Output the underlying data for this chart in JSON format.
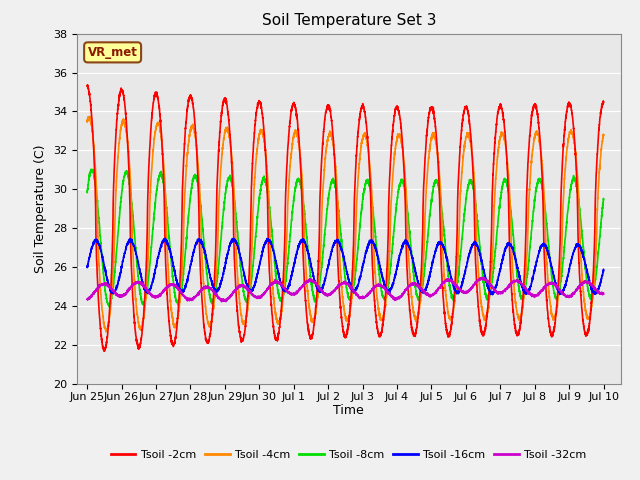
{
  "title": "Soil Temperature Set 3",
  "xlabel": "Time",
  "ylabel": "Soil Temperature (C)",
  "ylim": [
    20,
    38
  ],
  "background_color": "#e8e8e8",
  "grid_color": "#ffffff",
  "annotation_text": "VR_met",
  "series": {
    "Tsoil -2cm": {
      "color": "#ff0000",
      "lw": 1.2
    },
    "Tsoil -4cm": {
      "color": "#ff8800",
      "lw": 1.2
    },
    "Tsoil -8cm": {
      "color": "#00dd00",
      "lw": 1.2
    },
    "Tsoil -16cm": {
      "color": "#0000ff",
      "lw": 1.2
    },
    "Tsoil -32cm": {
      "color": "#cc00cc",
      "lw": 1.2
    }
  },
  "tick_labels": [
    "Jun 25",
    "Jun 26",
    "Jun 27",
    "Jun 28",
    "Jun 29",
    "Jun 30",
    "Jul 1",
    "Jul 2",
    "Jul 3",
    "Jul 4",
    "Jul 5",
    "Jul 6",
    "Jul 7",
    "Jul 8",
    "Jul 9",
    "Jul 10"
  ],
  "tick_positions": [
    0,
    1,
    2,
    3,
    4,
    5,
    6,
    7,
    8,
    9,
    10,
    11,
    12,
    13,
    14,
    15
  ],
  "yticks": [
    20,
    22,
    24,
    26,
    28,
    30,
    32,
    34,
    36,
    38
  ]
}
